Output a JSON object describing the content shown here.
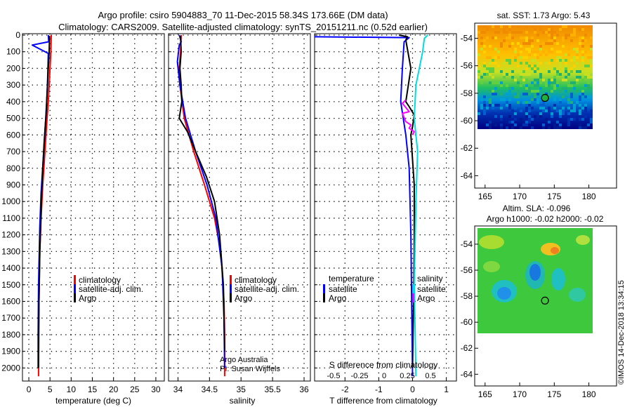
{
  "header": {
    "line1": "Argo profile: csiro 5904883_70 11-Dec-2015 58.34S 173.66E (DM data)",
    "line2": "Climatology: CARS2009. Satellite-adjusted climatology: synTS_20151211.nc (0.52d earlier)"
  },
  "colors": {
    "climatology": "#ff0000",
    "satellite": "#0000ff",
    "argo": "#000000",
    "sal_satellite": "#00dddd",
    "sal_argo": "#ff00ff"
  },
  "chart_data": [
    {
      "type": "line",
      "name": "temperature",
      "xlabel": "temperature (deg C)",
      "ylabel": "",
      "xlim": [
        -1.5,
        32
      ],
      "ylim": [
        2070,
        0
      ],
      "xticks": [
        0,
        5,
        10,
        15,
        20,
        25,
        30
      ],
      "yticks": [
        0,
        100,
        200,
        300,
        400,
        500,
        600,
        700,
        800,
        900,
        1000,
        1100,
        1200,
        1300,
        1400,
        1500,
        1600,
        1700,
        1800,
        1900,
        2000
      ],
      "legend": [
        "climatology",
        "satellite-adj. clim.",
        "Argo"
      ],
      "series": [
        {
          "name": "climatology",
          "x": [
            5.3,
            5.2,
            4.9,
            4.6,
            4.3,
            3.8,
            3.3,
            2.9,
            2.6,
            2.4,
            2.3,
            2.3
          ],
          "y": [
            0,
            100,
            250,
            400,
            500,
            700,
            900,
            1100,
            1300,
            1600,
            1800,
            2050
          ]
        },
        {
          "name": "satellite-adj. clim.",
          "x": [
            4.6,
            4.7,
            0.8,
            4.6,
            4.4,
            4.0,
            3.4,
            2.9,
            2.6,
            2.3,
            2.2,
            2.2
          ],
          "y": [
            0,
            40,
            60,
            110,
            300,
            500,
            750,
            950,
            1150,
            1500,
            1800,
            2000
          ]
        },
        {
          "name": "Argo",
          "x": [
            4.9,
            4.8,
            4.6,
            4.4,
            4.2,
            4.0,
            3.6,
            3.2,
            2.9,
            2.6,
            2.4,
            2.3
          ],
          "y": [
            5,
            100,
            200,
            300,
            420,
            500,
            650,
            850,
            1050,
            1300,
            1600,
            2000
          ]
        }
      ]
    },
    {
      "type": "line",
      "name": "salinity",
      "xlabel": "salinity",
      "xlim": [
        33.85,
        36.1
      ],
      "ylim": [
        2070,
        0
      ],
      "xticks": [
        34,
        34.5,
        35,
        35.5,
        36
      ],
      "legend": [
        "climatology",
        "satellite-adj. clim.",
        "Argo"
      ],
      "annotations": [
        "Argo Australia",
        "PI: Susan Wijffels"
      ],
      "series": [
        {
          "name": "climatology",
          "x": [
            34.05,
            34.04,
            34.02,
            34.03,
            34.1,
            34.25,
            34.42,
            34.58,
            34.68,
            34.73,
            34.74,
            34.74
          ],
          "y": [
            0,
            100,
            200,
            300,
            500,
            700,
            900,
            1100,
            1300,
            1600,
            1800,
            2050
          ]
        },
        {
          "name": "satellite-adj. clim.",
          "x": [
            34.02,
            34.05,
            34.02,
            33.99,
            34.03,
            34.12,
            34.28,
            34.46,
            34.6,
            34.7,
            34.73,
            34.74
          ],
          "y": [
            0,
            40,
            60,
            160,
            300,
            500,
            700,
            900,
            1100,
            1400,
            1700,
            2000
          ]
        },
        {
          "name": "Argo",
          "x": [
            34.04,
            34.05,
            34.03,
            34.05,
            34.06,
            34.02,
            34.15,
            34.28,
            34.45,
            34.58,
            34.66,
            34.72,
            34.74
          ],
          "y": [
            5,
            100,
            200,
            300,
            400,
            500,
            580,
            700,
            850,
            1000,
            1200,
            1500,
            1900
          ]
        }
      ]
    },
    {
      "type": "line",
      "name": "difference from climatology",
      "xlabel": "T difference from climatology",
      "secondary_axis_label": "S difference from climatology",
      "xlim": [
        -2.9,
        1.3
      ],
      "ylim": [
        2070,
        0
      ],
      "xticks": [
        -2,
        -1,
        0,
        1
      ],
      "secondary_ticks": [
        "-0.5",
        "-0.25",
        "0",
        "0.25",
        "0.5"
      ],
      "legend_left_title": "temperature",
      "legend_right_title": "salinity",
      "legend_left": [
        "satellite",
        "Argo"
      ],
      "legend_right": [
        "satellite",
        "Argo"
      ],
      "series": [
        {
          "name": "T satellite",
          "x": [
            -2.9,
            -0.1,
            -0.25,
            -0.3,
            -0.35,
            -0.2,
            -0.1,
            -0.05,
            0
          ],
          "y": [
            10,
            15,
            40,
            200,
            400,
            600,
            800,
            1200,
            2050
          ]
        },
        {
          "name": "T Argo",
          "x": [
            -0.4,
            -0.15,
            -0.2,
            -0.05,
            -0.2,
            -0.1,
            0.05,
            0,
            -0.05,
            0.05,
            0.05,
            0
          ],
          "y": [
            0,
            10,
            30,
            200,
            400,
            430,
            480,
            550,
            600,
            900,
            1300,
            2000
          ]
        },
        {
          "name": "S satellite",
          "x": [
            0.45,
            0.35,
            0.3,
            0.1,
            0.05,
            0.15,
            0.1,
            0.05,
            0.1
          ],
          "y": [
            0,
            20,
            100,
            300,
            500,
            700,
            1000,
            1500,
            2050
          ]
        },
        {
          "name": "S Argo",
          "x": [
            -0.2,
            -0.3,
            -0.1,
            -0.3,
            -0.2,
            -0.05,
            -0.1,
            0.05,
            0
          ],
          "y": [
            390,
            410,
            460,
            470,
            520,
            540,
            560,
            580,
            600
          ]
        }
      ]
    }
  ],
  "maps": {
    "sst": {
      "title": "sat. SST: 1.73 Argo: 5.43",
      "xticks": [
        "165",
        "170",
        "175",
        "180"
      ],
      "yticks": [
        "-54",
        "-56",
        "-58",
        "-60",
        "-62",
        "-64"
      ],
      "argo_position": {
        "lon": 173.66,
        "lat": -58.34
      }
    },
    "sla": {
      "title1": "Altim. SLA: -0.096",
      "title2": "Argo h1000: -0.02 h2000: -0.02",
      "xticks": [
        "165",
        "170",
        "175",
        "180"
      ],
      "yticks": [
        "-54",
        "-56",
        "-58",
        "-60",
        "-62",
        "-64"
      ],
      "argo_position": {
        "lon": 173.66,
        "lat": -58.34
      }
    }
  },
  "credit": "©IMOS 14-Dec-2018 13:34:15"
}
